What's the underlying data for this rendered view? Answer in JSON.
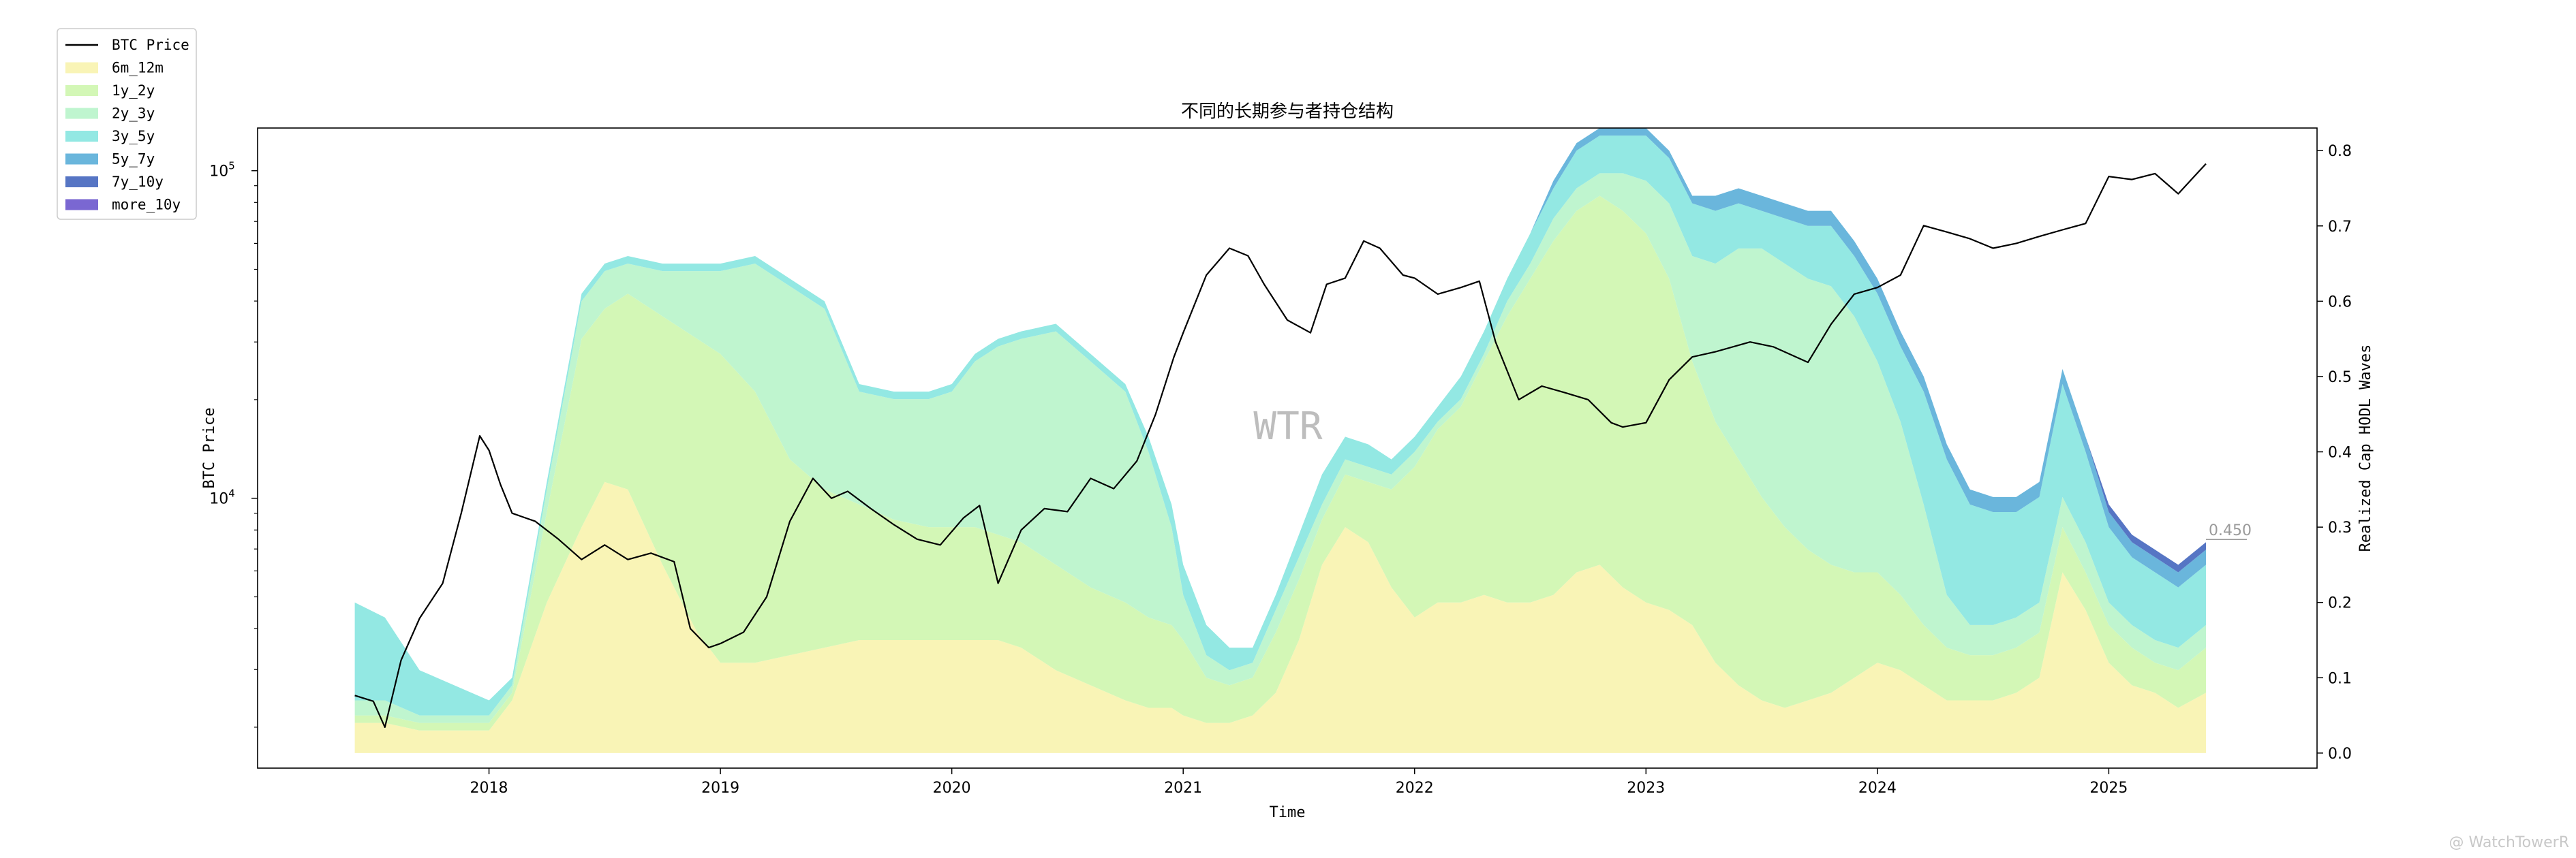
{
  "chart_data": {
    "type": "area",
    "title": "不同的长期参与者持仓结构",
    "xlabel": "Time",
    "ylabel_left": "BTC Price",
    "ylabel_right": "Realized Cap HODL Waves",
    "x_ticks": [
      "2018",
      "2019",
      "2020",
      "2021",
      "2022",
      "2023",
      "2024",
      "2025"
    ],
    "xlim": [
      2017.0,
      2025.9
    ],
    "left_axis": {
      "scale": "log",
      "ylim": [
        1500,
        135000
      ],
      "tick_values": [
        10000,
        100000
      ],
      "tick_labels": [
        "10^4",
        "10^5"
      ]
    },
    "right_axis": {
      "ylim": [
        -0.02,
        0.83
      ],
      "tick_values": [
        0.0,
        0.1,
        0.2,
        0.3,
        0.4,
        0.5,
        0.6,
        0.7,
        0.8
      ],
      "tick_labels": [
        "0.0",
        "0.1",
        "0.2",
        "0.3",
        "0.4",
        "0.5",
        "0.6",
        "0.7",
        "0.8"
      ]
    },
    "grid": false,
    "legend_position": "outside-top-left",
    "last_value_label": "0.450",
    "watermark": "WTR",
    "credit": "@ WatchTowerR",
    "x": [
      2017.42,
      2017.55,
      2017.7,
      2017.85,
      2018.0,
      2018.1,
      2018.25,
      2018.4,
      2018.5,
      2018.6,
      2018.75,
      2018.9,
      2019.0,
      2019.15,
      2019.3,
      2019.45,
      2019.6,
      2019.75,
      2019.9,
      2020.0,
      2020.1,
      2020.2,
      2020.3,
      2020.45,
      2020.6,
      2020.75,
      2020.85,
      2020.95,
      2021.0,
      2021.1,
      2021.2,
      2021.3,
      2021.4,
      2021.5,
      2021.6,
      2021.7,
      2021.8,
      2021.9,
      2022.0,
      2022.1,
      2022.2,
      2022.3,
      2022.4,
      2022.5,
      2022.6,
      2022.7,
      2022.8,
      2022.9,
      2023.0,
      2023.1,
      2023.2,
      2023.3,
      2023.4,
      2023.5,
      2023.6,
      2023.7,
      2023.8,
      2023.9,
      2024.0,
      2024.1,
      2024.2,
      2024.3,
      2024.4,
      2024.5,
      2024.6,
      2024.7,
      2024.8,
      2024.9,
      2025.0,
      2025.1,
      2025.2,
      2025.3,
      2025.42
    ],
    "series": [
      {
        "name": "6m_12m",
        "color": "#f9f4b6",
        "values": [
          0.04,
          0.04,
          0.03,
          0.03,
          0.03,
          0.07,
          0.2,
          0.3,
          0.36,
          0.35,
          0.25,
          0.16,
          0.12,
          0.12,
          0.13,
          0.14,
          0.15,
          0.15,
          0.15,
          0.15,
          0.15,
          0.15,
          0.14,
          0.11,
          0.09,
          0.07,
          0.06,
          0.06,
          0.05,
          0.04,
          0.04,
          0.05,
          0.08,
          0.15,
          0.25,
          0.3,
          0.28,
          0.22,
          0.18,
          0.2,
          0.2,
          0.21,
          0.2,
          0.2,
          0.21,
          0.24,
          0.25,
          0.22,
          0.2,
          0.19,
          0.17,
          0.12,
          0.09,
          0.07,
          0.06,
          0.07,
          0.08,
          0.1,
          0.12,
          0.11,
          0.09,
          0.07,
          0.07,
          0.07,
          0.08,
          0.1,
          0.24,
          0.19,
          0.12,
          0.09,
          0.08,
          0.06,
          0.08
        ]
      },
      {
        "name": "1y_2y",
        "color": "#d3f7b6",
        "values": [
          0.01,
          0.01,
          0.01,
          0.01,
          0.01,
          0.01,
          0.12,
          0.25,
          0.23,
          0.26,
          0.33,
          0.39,
          0.41,
          0.36,
          0.26,
          0.21,
          0.18,
          0.16,
          0.15,
          0.15,
          0.15,
          0.14,
          0.14,
          0.14,
          0.13,
          0.13,
          0.12,
          0.11,
          0.1,
          0.06,
          0.05,
          0.05,
          0.08,
          0.08,
          0.06,
          0.07,
          0.08,
          0.13,
          0.2,
          0.23,
          0.26,
          0.31,
          0.38,
          0.43,
          0.47,
          0.48,
          0.49,
          0.5,
          0.49,
          0.44,
          0.35,
          0.32,
          0.3,
          0.27,
          0.24,
          0.2,
          0.17,
          0.14,
          0.12,
          0.1,
          0.08,
          0.07,
          0.06,
          0.06,
          0.06,
          0.06,
          0.06,
          0.05,
          0.05,
          0.05,
          0.04,
          0.05,
          0.06
        ]
      },
      {
        "name": "2y_3y",
        "color": "#bff5cf",
        "values": [
          0.02,
          0.02,
          0.01,
          0.01,
          0.01,
          0.01,
          0.03,
          0.05,
          0.05,
          0.04,
          0.06,
          0.09,
          0.11,
          0.17,
          0.23,
          0.24,
          0.15,
          0.16,
          0.17,
          0.18,
          0.22,
          0.25,
          0.27,
          0.31,
          0.3,
          0.28,
          0.22,
          0.13,
          0.06,
          0.03,
          0.02,
          0.02,
          0.03,
          0.03,
          0.02,
          0.02,
          0.02,
          0.02,
          0.02,
          0.01,
          0.01,
          0.01,
          0.02,
          0.02,
          0.03,
          0.03,
          0.03,
          0.05,
          0.07,
          0.1,
          0.14,
          0.21,
          0.28,
          0.33,
          0.35,
          0.36,
          0.37,
          0.34,
          0.28,
          0.23,
          0.16,
          0.07,
          0.04,
          0.04,
          0.04,
          0.04,
          0.04,
          0.04,
          0.03,
          0.03,
          0.03,
          0.03,
          0.03
        ]
      },
      {
        "name": "3y_5y",
        "color": "#93e8e3",
        "values": [
          0.13,
          0.11,
          0.06,
          0.04,
          0.02,
          0.01,
          0.01,
          0.01,
          0.01,
          0.01,
          0.01,
          0.01,
          0.01,
          0.01,
          0.01,
          0.01,
          0.01,
          0.01,
          0.01,
          0.01,
          0.01,
          0.01,
          0.01,
          0.01,
          0.01,
          0.01,
          0.02,
          0.03,
          0.04,
          0.04,
          0.03,
          0.02,
          0.02,
          0.03,
          0.04,
          0.03,
          0.03,
          0.02,
          0.02,
          0.02,
          0.03,
          0.03,
          0.03,
          0.04,
          0.04,
          0.05,
          0.05,
          0.05,
          0.06,
          0.06,
          0.07,
          0.07,
          0.06,
          0.05,
          0.06,
          0.07,
          0.08,
          0.08,
          0.09,
          0.1,
          0.15,
          0.18,
          0.16,
          0.15,
          0.14,
          0.14,
          0.15,
          0.12,
          0.1,
          0.09,
          0.09,
          0.08,
          0.08
        ]
      },
      {
        "name": "5y_7y",
        "color": "#6ab6dc",
        "values": [
          0.0,
          0.0,
          0.0,
          0.0,
          0.0,
          0.0,
          0.0,
          0.0,
          0.0,
          0.0,
          0.0,
          0.0,
          0.0,
          0.0,
          0.0,
          0.0,
          0.0,
          0.0,
          0.0,
          0.0,
          0.0,
          0.0,
          0.0,
          0.0,
          0.0,
          0.0,
          0.0,
          0.0,
          0.0,
          0.0,
          0.0,
          0.0,
          0.0,
          0.0,
          0.0,
          0.0,
          0.0,
          0.0,
          0.0,
          0.0,
          0.0,
          0.0,
          0.0,
          0.0,
          0.01,
          0.01,
          0.01,
          0.01,
          0.01,
          0.01,
          0.01,
          0.02,
          0.02,
          0.02,
          0.02,
          0.02,
          0.02,
          0.02,
          0.02,
          0.02,
          0.02,
          0.02,
          0.02,
          0.02,
          0.02,
          0.02,
          0.02,
          0.02,
          0.02,
          0.02,
          0.02,
          0.02,
          0.02
        ]
      },
      {
        "name": "7y_10y",
        "color": "#5675c4",
        "values": [
          0.0,
          0.0,
          0.0,
          0.0,
          0.0,
          0.0,
          0.0,
          0.0,
          0.0,
          0.0,
          0.0,
          0.0,
          0.0,
          0.0,
          0.0,
          0.0,
          0.0,
          0.0,
          0.0,
          0.0,
          0.0,
          0.0,
          0.0,
          0.0,
          0.0,
          0.0,
          0.0,
          0.0,
          0.0,
          0.0,
          0.0,
          0.0,
          0.0,
          0.0,
          0.0,
          0.0,
          0.0,
          0.0,
          0.0,
          0.0,
          0.0,
          0.0,
          0.0,
          0.0,
          0.0,
          0.0,
          0.0,
          0.0,
          0.0,
          0.0,
          0.0,
          0.0,
          0.0,
          0.0,
          0.0,
          0.0,
          0.0,
          0.0,
          0.0,
          0.0,
          0.0,
          0.0,
          0.0,
          0.0,
          0.0,
          0.0,
          0.0,
          0.0,
          0.01,
          0.01,
          0.01,
          0.01,
          0.01
        ]
      },
      {
        "name": "more_10y",
        "color": "#7a67d2",
        "values": [
          0.0,
          0.0,
          0.0,
          0.0,
          0.0,
          0.0,
          0.0,
          0.0,
          0.0,
          0.0,
          0.0,
          0.0,
          0.0,
          0.0,
          0.0,
          0.0,
          0.0,
          0.0,
          0.0,
          0.0,
          0.0,
          0.0,
          0.0,
          0.0,
          0.0,
          0.0,
          0.0,
          0.0,
          0.0,
          0.0,
          0.0,
          0.0,
          0.0,
          0.0,
          0.0,
          0.0,
          0.0,
          0.0,
          0.0,
          0.0,
          0.0,
          0.0,
          0.0,
          0.0,
          0.0,
          0.0,
          0.0,
          0.0,
          0.0,
          0.0,
          0.0,
          0.0,
          0.0,
          0.0,
          0.0,
          0.0,
          0.0,
          0.0,
          0.0,
          0.0,
          0.0,
          0.0,
          0.0,
          0.0,
          0.0,
          0.0,
          0.0,
          0.0,
          0.0,
          0.0,
          0.0,
          0.0,
          0.0
        ]
      }
    ],
    "price": {
      "name": "BTC Price",
      "color": "#000000",
      "x": [
        2017.42,
        2017.5,
        2017.55,
        2017.62,
        2017.7,
        2017.8,
        2017.88,
        2017.96,
        2018.0,
        2018.05,
        2018.1,
        2018.2,
        2018.3,
        2018.4,
        2018.5,
        2018.6,
        2018.7,
        2018.8,
        2018.87,
        2018.95,
        2019.0,
        2019.1,
        2019.2,
        2019.3,
        2019.4,
        2019.48,
        2019.55,
        2019.65,
        2019.75,
        2019.85,
        2019.95,
        2020.05,
        2020.12,
        2020.2,
        2020.3,
        2020.4,
        2020.5,
        2020.6,
        2020.7,
        2020.8,
        2020.88,
        2020.96,
        2021.0,
        2021.1,
        2021.2,
        2021.28,
        2021.35,
        2021.45,
        2021.55,
        2021.62,
        2021.7,
        2021.78,
        2021.85,
        2021.95,
        2022.0,
        2022.1,
        2022.2,
        2022.28,
        2022.35,
        2022.45,
        2022.55,
        2022.65,
        2022.75,
        2022.85,
        2022.9,
        2023.0,
        2023.1,
        2023.2,
        2023.3,
        2023.45,
        2023.55,
        2023.7,
        2023.8,
        2023.9,
        2024.0,
        2024.1,
        2024.2,
        2024.3,
        2024.4,
        2024.5,
        2024.6,
        2024.7,
        2024.8,
        2024.9,
        2025.0,
        2025.1,
        2025.2,
        2025.3,
        2025.42
      ],
      "values": [
        2500,
        2400,
        2000,
        3200,
        4300,
        5500,
        9000,
        15500,
        14000,
        11000,
        9000,
        8500,
        7500,
        6500,
        7200,
        6500,
        6800,
        6400,
        4000,
        3500,
        3600,
        3900,
        5000,
        8500,
        11500,
        10000,
        10500,
        9300,
        8300,
        7500,
        7200,
        8700,
        9500,
        5500,
        8000,
        9300,
        9100,
        11500,
        10700,
        13000,
        18000,
        27000,
        32000,
        48000,
        58000,
        55000,
        45000,
        35000,
        32000,
        45000,
        47000,
        61000,
        58000,
        48000,
        47000,
        42000,
        44000,
        46000,
        30000,
        20000,
        22000,
        21000,
        20000,
        17000,
        16500,
        17000,
        23000,
        27000,
        28000,
        30000,
        29000,
        26000,
        34000,
        42000,
        44000,
        48000,
        68000,
        65000,
        62000,
        58000,
        60000,
        63000,
        66000,
        69000,
        96000,
        94000,
        98000,
        85000,
        105000
      ]
    }
  }
}
